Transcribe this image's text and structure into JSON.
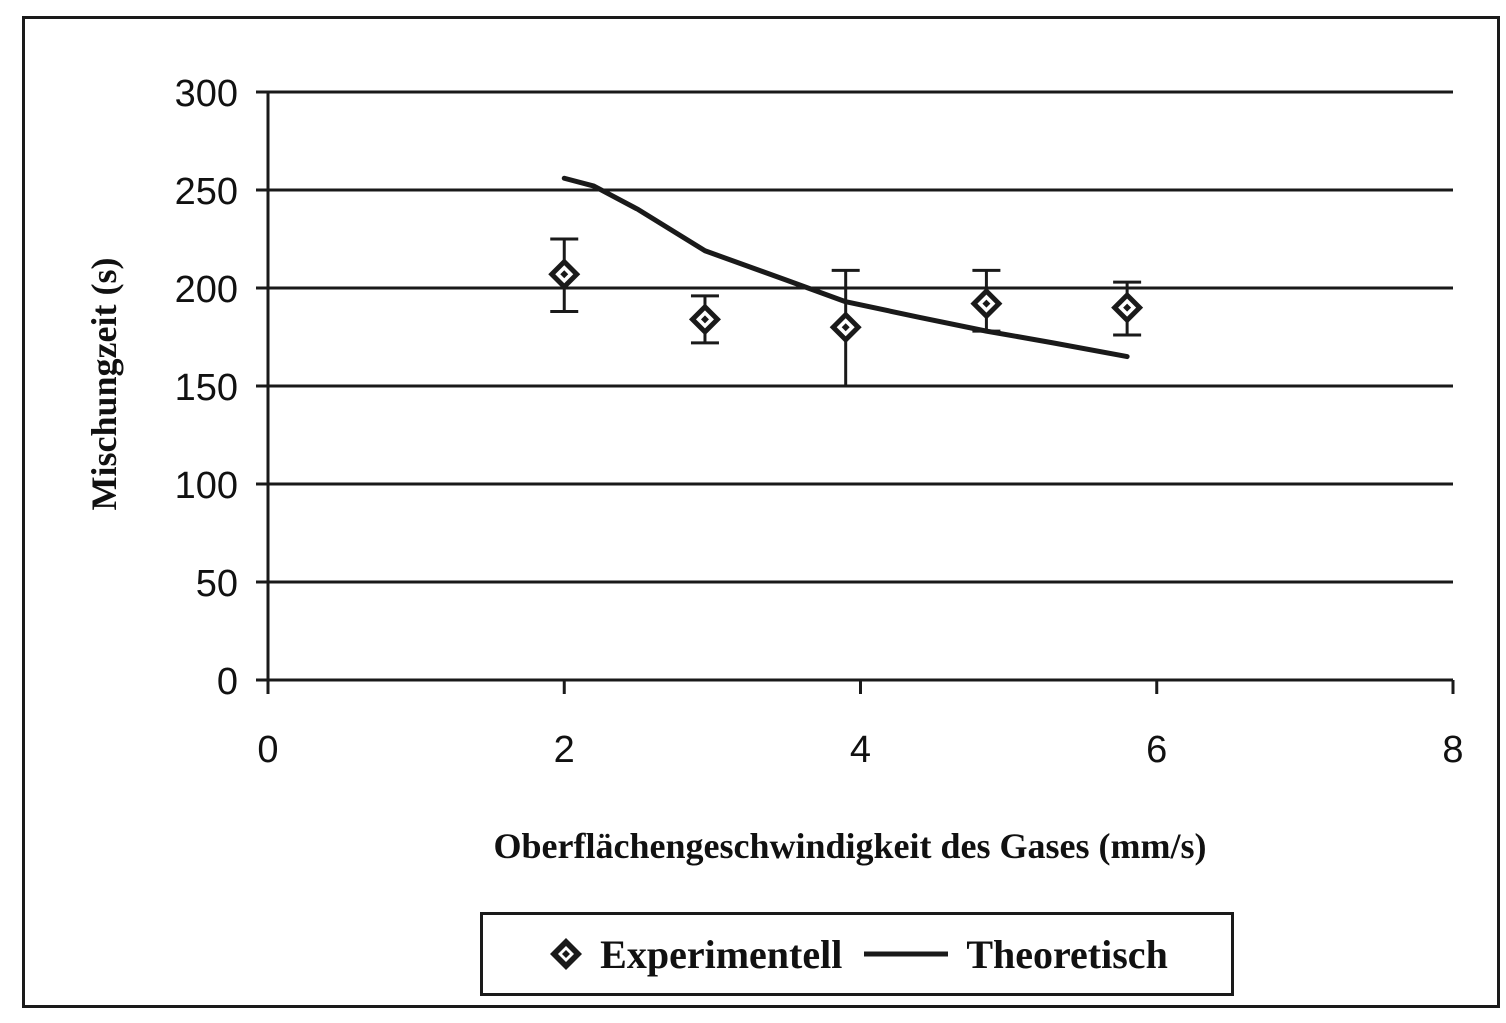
{
  "chart_data": {
    "type": "scatter",
    "title": "",
    "xlabel": "Oberflächengeschwindigkeit des Gases (mm/s)",
    "ylabel": "Mischungzeit (s)",
    "xlim": [
      0,
      8
    ],
    "ylim": [
      0,
      300
    ],
    "x_ticks": [
      "0",
      "2",
      "4",
      "6",
      "8"
    ],
    "y_ticks": [
      "0",
      "50",
      "100",
      "150",
      "200",
      "250",
      "300"
    ],
    "grid": "horizontal",
    "legend_position": "bottom",
    "series": [
      {
        "name": "Experimentell",
        "type": "scatter",
        "marker": "diamond",
        "color": "#1a1a1a",
        "points": [
          {
            "x": 2.0,
            "y": 207,
            "err_low": 188,
            "err_high": 225
          },
          {
            "x": 2.95,
            "y": 184,
            "err_low": 172,
            "err_high": 196
          },
          {
            "x": 3.9,
            "y": 180,
            "err_low": 150,
            "err_high": 209
          },
          {
            "x": 4.85,
            "y": 192,
            "err_low": 178,
            "err_high": 209
          },
          {
            "x": 5.8,
            "y": 190,
            "err_low": 176,
            "err_high": 203
          }
        ]
      },
      {
        "name": "Theoretisch",
        "type": "line",
        "color": "#1a1a1a",
        "points": [
          {
            "x": 2.0,
            "y": 256
          },
          {
            "x": 2.2,
            "y": 252
          },
          {
            "x": 2.5,
            "y": 240
          },
          {
            "x": 2.95,
            "y": 219
          },
          {
            "x": 3.5,
            "y": 204
          },
          {
            "x": 3.9,
            "y": 193
          },
          {
            "x": 4.4,
            "y": 185
          },
          {
            "x": 4.85,
            "y": 178
          },
          {
            "x": 5.3,
            "y": 172
          },
          {
            "x": 5.8,
            "y": 165
          }
        ]
      }
    ]
  }
}
